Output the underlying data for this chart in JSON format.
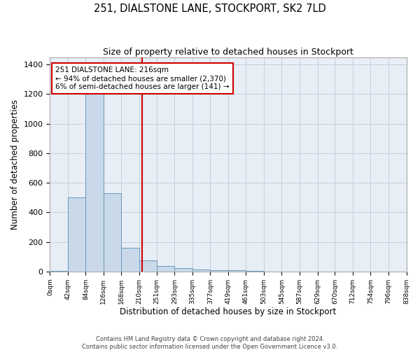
{
  "title1": "251, DIALSTONE LANE, STOCKPORT, SK2 7LD",
  "title2": "Size of property relative to detached houses in Stockport",
  "xlabel": "Distribution of detached houses by size in Stockport",
  "ylabel": "Number of detached properties",
  "annotation_line1": "251 DIALSTONE LANE: 216sqm",
  "annotation_line2": "← 94% of detached houses are smaller (2,370)",
  "annotation_line3": "6% of semi-detached houses are larger (141) →",
  "footer1": "Contains HM Land Registry data © Crown copyright and database right 2024.",
  "footer2": "Contains public sector information licensed under the Open Government Licence v3.0.",
  "bin_edges": [
    0,
    42,
    84,
    126,
    168,
    210,
    251,
    293,
    335,
    377,
    419,
    461,
    503,
    545,
    587,
    629,
    670,
    712,
    754,
    796,
    838
  ],
  "bar_heights": [
    5,
    500,
    1200,
    530,
    160,
    75,
    35,
    25,
    15,
    10,
    10,
    3,
    0,
    0,
    0,
    0,
    0,
    0,
    0,
    0
  ],
  "bar_color": "#c9d9ea",
  "bar_edge_color": "#6699bb",
  "vline_x": 216,
  "vline_color": "#cc0000",
  "annotation_box_color": "#cc0000",
  "grid_color": "#c5cfdc",
  "bg_color": "#e8eef5",
  "ylim": [
    0,
    1450
  ],
  "xlim": [
    0,
    838
  ],
  "yticks": [
    0,
    200,
    400,
    600,
    800,
    1000,
    1200,
    1400
  ]
}
